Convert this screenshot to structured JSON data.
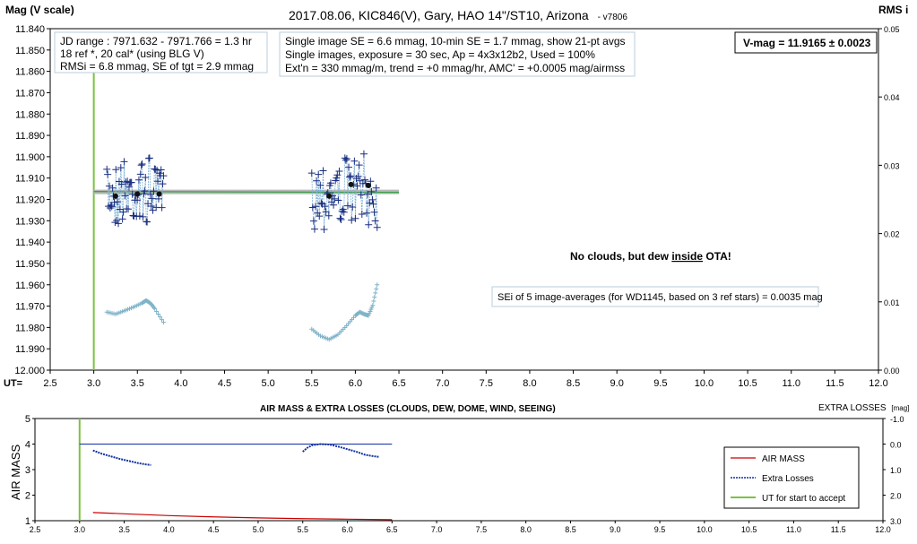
{
  "chart_data": [
    {
      "type": "scatter",
      "title": "2017.08.06,  KIC846(V),  Gary,  HAO 14\"/ST10, Arizona",
      "version": "- v7806",
      "ylabel_left": "Mag (V scale)",
      "ylabel_right": "RMS i",
      "xlabel": "UT=",
      "xlim": [
        2.5,
        12.0
      ],
      "ylim_left": [
        11.84,
        12.0
      ],
      "ylim_right": [
        0.0,
        0.05
      ],
      "x_ticks": [
        "2.5",
        "3.0",
        "3.5",
        "4.0",
        "4.5",
        "5.0",
        "5.5",
        "6.0",
        "6.5",
        "7.0",
        "7.5",
        "8.0",
        "8.5",
        "9.0",
        "9.5",
        "10.0",
        "10.5",
        "11.0",
        "11.5",
        "12.0"
      ],
      "y_ticks_left": [
        "11.840",
        "11.850",
        "11.860",
        "11.870",
        "11.880",
        "11.890",
        "11.900",
        "11.910",
        "11.920",
        "11.930",
        "11.940",
        "11.950",
        "11.960",
        "11.970",
        "11.980",
        "11.990",
        "12.000"
      ],
      "y_ticks_right": [
        "0.05",
        "0.04",
        "0.03",
        "0.02",
        "0.01",
        "0.00"
      ],
      "info_box_1": [
        "JD range : 7971.632 - 7971.766 = 1.3 hr",
        "18 ref *, 20 cal* (using BLG V)",
        "RMSi = 6.8 mmag, SE of tgt = 2.9 mmag"
      ],
      "info_box_2": [
        "Single image SE = 6.6 mmag, 10-min SE = 1.7 mmag, show 21-pt avgs",
        "Single images, exposure = 30 sec, Ap = 4x3x12b2, Used = 100%",
        "Ext'n = 330 mmag/m, trend = +0 mmag/hr, AMC' = +0.0005 mag/airmss"
      ],
      "vmag_label": "V-mag = 11.9165 ± 0.0023",
      "annotation_clouds": {
        "before": "No clouds, but dew ",
        "underlined": "inside",
        "after": " OTA!"
      },
      "annotation_sei": "SEi of 5 image-averages (for WD1145, based on 3 ref stars) = 0.0035 mag",
      "uta_start": 3.0,
      "mean_mag": 11.9165,
      "fit_line": {
        "x": [
          3.0,
          6.5
        ],
        "y": [
          11.9163,
          11.9167
        ]
      },
      "avg_points": {
        "x": [
          3.25,
          3.5,
          3.75,
          5.7,
          5.95,
          6.15
        ],
        "y": [
          11.9185,
          11.9175,
          11.9175,
          11.9185,
          11.913,
          11.9135
        ]
      },
      "segments": [
        [
          3.15,
          3.8
        ],
        [
          5.5,
          6.25
        ]
      ],
      "rms_segments": [
        {
          "x": [
            3.15,
            3.25,
            3.35,
            3.45,
            3.55,
            3.6,
            3.65,
            3.7,
            3.8
          ],
          "y": [
            0.0085,
            0.0082,
            0.0087,
            0.0092,
            0.0098,
            0.0102,
            0.0098,
            0.009,
            0.007
          ]
        },
        {
          "x": [
            5.5,
            5.6,
            5.7,
            5.8,
            5.9,
            6.0,
            6.05,
            6.1,
            6.15,
            6.2,
            6.25
          ],
          "y": [
            0.006,
            0.005,
            0.0045,
            0.0052,
            0.0065,
            0.008,
            0.0085,
            0.0082,
            0.008,
            0.0095,
            0.0125
          ]
        }
      ]
    },
    {
      "type": "line",
      "title": "AIR MASS & EXTRA LOSSES (CLOUDS, DEW, DOME, WIND, SEEING)",
      "ylabel_left": "AIR MASS",
      "ylabel_right": "EXTRA LOSSES",
      "ylabel_right_unit": "[mag]",
      "xlim": [
        2.5,
        12.0
      ],
      "ylim_left": [
        1,
        5
      ],
      "ylim_right": [
        -1.0,
        3.0
      ],
      "x_ticks": [
        "2.5",
        "3.0",
        "3.5",
        "4.0",
        "4.5",
        "5.0",
        "5.5",
        "6.0",
        "6.5",
        "7.0",
        "7.5",
        "8.0",
        "8.5",
        "9.0",
        "9.5",
        "10.0",
        "10.5",
        "11.0",
        "11.5",
        "12.0"
      ],
      "y_ticks_left": [
        "5",
        "4",
        "3",
        "2",
        "1"
      ],
      "y_ticks_right": [
        "-1.0",
        "0.0",
        "1.0",
        "2.0",
        "3.0"
      ],
      "legend": [
        "AIR MASS",
        "Extra Losses",
        "UT for start to accept"
      ],
      "legend_position": "bottom-right",
      "series": [
        {
          "name": "AIR MASS",
          "color": "#cc0000",
          "x": [
            3.15,
            3.5,
            4.0,
            4.5,
            5.0,
            5.5,
            6.0,
            6.5
          ],
          "y": [
            1.32,
            1.27,
            1.2,
            1.15,
            1.11,
            1.08,
            1.06,
            1.04
          ]
        },
        {
          "name": "Extra Losses",
          "color": "#1030a0",
          "segments": [
            {
              "x": [
                3.15,
                3.25,
                3.35,
                3.45,
                3.55,
                3.65,
                3.75,
                3.8
              ],
              "y": [
                0.25,
                0.38,
                0.48,
                0.58,
                0.66,
                0.74,
                0.8,
                0.82
              ]
            },
            {
              "x": [
                5.5,
                5.55,
                5.6,
                5.7,
                5.8,
                5.9,
                6.0,
                6.1,
                6.2,
                6.3,
                6.35
              ],
              "y": [
                0.3,
                0.15,
                0.05,
                0.0,
                0.02,
                0.1,
                0.2,
                0.3,
                0.42,
                0.48,
                0.5
              ]
            }
          ]
        },
        {
          "name": "UT for start to accept",
          "color": "#7cc242",
          "x": [
            3.0,
            3.0
          ],
          "y": [
            1,
            5
          ]
        }
      ],
      "extra_losses_baseline": {
        "x": [
          3.0,
          6.5
        ],
        "y": [
          0.0,
          0.0
        ]
      }
    }
  ]
}
